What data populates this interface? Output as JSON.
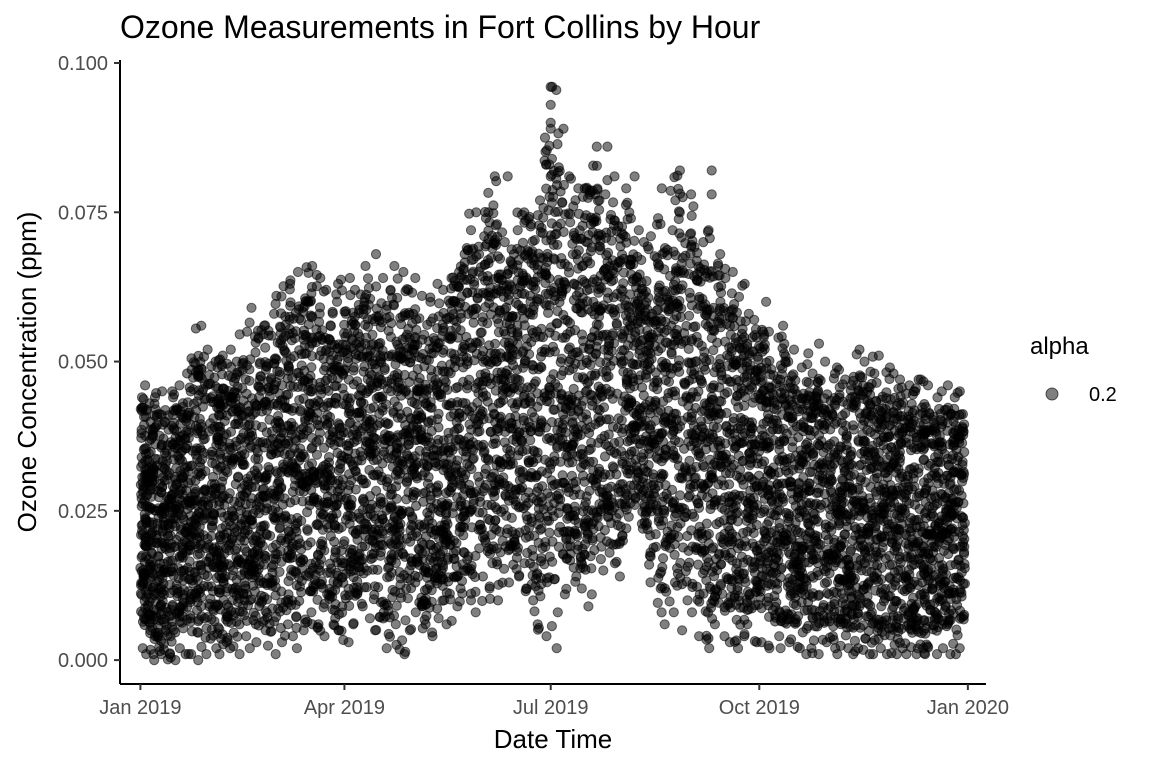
{
  "chart_data": {
    "type": "scatter",
    "title": "Ozone Measurements in Fort Collins by Hour",
    "xlabel": "Date Time",
    "ylabel": "Ozone Concentration (ppm)",
    "x_range": [
      "2018-12-23",
      "2020-01-09"
    ],
    "ylim": [
      -0.004,
      0.1005
    ],
    "y_ticks": [
      {
        "value": 0.0,
        "label": "0.000"
      },
      {
        "value": 0.025,
        "label": "0.025"
      },
      {
        "value": 0.05,
        "label": "0.050"
      },
      {
        "value": 0.075,
        "label": "0.075"
      },
      {
        "value": 0.1,
        "label": "0.100"
      }
    ],
    "x_ticks": [
      {
        "value": "2019-01-01",
        "label": "Jan 2019"
      },
      {
        "value": "2019-04-01",
        "label": "Apr 2019"
      },
      {
        "value": "2019-07-01",
        "label": "Jul 2019"
      },
      {
        "value": "2019-10-01",
        "label": "Oct 2019"
      },
      {
        "value": "2020-01-01",
        "label": "Jan 2020"
      }
    ],
    "grid": false,
    "legend": {
      "title": "alpha",
      "position": "right",
      "entries": [
        {
          "label": "0.2"
        }
      ]
    },
    "point_color": "#000000",
    "point_alpha": 0.5,
    "series": [
      {
        "x": [
          "2019-01-01",
          "2019-01-03",
          "2019-01-05",
          "2019-01-07",
          "2019-01-10",
          "2019-01-12",
          "2019-01-15",
          "2019-01-18",
          "2019-01-20",
          "2019-01-23",
          "2019-01-26",
          "2019-01-28",
          "2019-02-01",
          "2019-02-04",
          "2019-02-06",
          "2019-02-09",
          "2019-02-12",
          "2019-02-15",
          "2019-02-18",
          "2019-02-21",
          "2019-02-24",
          "2019-02-27",
          "2019-03-02",
          "2019-03-05",
          "2019-03-08",
          "2019-03-11",
          "2019-03-14",
          "2019-03-17",
          "2019-03-20",
          "2019-03-23",
          "2019-03-26",
          "2019-03-29",
          "2019-04-01",
          "2019-04-04",
          "2019-04-07",
          "2019-04-10",
          "2019-04-13",
          "2019-04-16",
          "2019-04-19",
          "2019-04-22",
          "2019-04-25",
          "2019-04-28",
          "2019-05-01",
          "2019-05-04",
          "2019-05-07",
          "2019-05-10",
          "2019-05-13",
          "2019-05-16",
          "2019-05-19",
          "2019-05-22",
          "2019-05-25",
          "2019-05-28",
          "2019-06-01",
          "2019-06-04",
          "2019-06-07",
          "2019-06-10",
          "2019-06-13",
          "2019-06-16",
          "2019-06-19",
          "2019-06-22",
          "2019-06-25",
          "2019-06-28",
          "2019-07-01",
          "2019-07-04",
          "2019-07-07",
          "2019-07-10",
          "2019-07-13",
          "2019-07-16",
          "2019-07-19",
          "2019-07-22",
          "2019-07-25",
          "2019-07-28",
          "2019-08-01",
          "2019-08-04",
          "2019-08-07",
          "2019-08-10",
          "2019-08-13",
          "2019-08-16",
          "2019-08-19",
          "2019-08-22",
          "2019-08-25",
          "2019-08-28",
          "2019-09-01",
          "2019-09-04",
          "2019-09-07",
          "2019-09-10",
          "2019-09-13",
          "2019-09-16",
          "2019-09-19",
          "2019-09-22",
          "2019-09-25",
          "2019-09-28",
          "2019-10-01",
          "2019-10-04",
          "2019-10-07",
          "2019-10-10",
          "2019-10-13",
          "2019-10-16",
          "2019-10-19",
          "2019-10-22",
          "2019-10-25",
          "2019-10-28",
          "2019-11-01",
          "2019-11-04",
          "2019-11-07",
          "2019-11-10",
          "2019-11-13",
          "2019-11-16",
          "2019-11-19",
          "2019-11-22",
          "2019-11-25",
          "2019-11-28",
          "2019-12-01",
          "2019-12-04",
          "2019-12-07",
          "2019-12-10",
          "2019-12-13",
          "2019-12-16",
          "2019-12-19",
          "2019-12-22",
          "2019-12-25",
          "2019-12-28",
          "2019-12-31"
        ],
        "low": [
          0.002,
          0.001,
          0.001,
          0.0,
          0.001,
          0.001,
          0.0,
          0.002,
          0.001,
          0.001,
          0.0,
          0.001,
          0.002,
          0.001,
          0.003,
          0.002,
          0.001,
          0.004,
          0.002,
          0.003,
          0.005,
          0.001,
          0.003,
          0.006,
          0.004,
          0.002,
          0.005,
          0.008,
          0.006,
          0.004,
          0.007,
          0.005,
          0.003,
          0.006,
          0.009,
          0.007,
          0.005,
          0.008,
          0.002,
          0.006,
          0.001,
          0.005,
          0.008,
          0.006,
          0.004,
          0.007,
          0.01,
          0.006,
          0.009,
          0.012,
          0.01,
          0.008,
          0.014,
          0.012,
          0.01,
          0.013,
          0.016,
          0.014,
          0.012,
          0.01,
          0.006,
          0.004,
          0.002,
          0.008,
          0.011,
          0.014,
          0.012,
          0.009,
          0.011,
          0.015,
          0.018,
          0.014,
          0.02,
          0.024,
          0.026,
          0.022,
          0.016,
          0.012,
          0.006,
          0.008,
          0.005,
          0.01,
          0.008,
          0.004,
          0.002,
          0.006,
          0.004,
          0.003,
          0.002,
          0.004,
          0.006,
          0.003,
          0.003,
          0.002,
          0.004,
          0.002,
          0.003,
          0.002,
          0.001,
          0.002,
          0.001,
          0.003,
          0.002,
          0.001,
          0.002,
          0.001,
          0.002,
          0.001,
          0.001,
          0.002,
          0.001,
          0.001,
          0.002,
          0.001,
          0.001,
          0.002,
          0.001,
          0.001,
          0.002,
          0.001,
          0.001,
          0.002,
          0.001
        ],
        "high": [
          0.044,
          0.046,
          0.043,
          0.042,
          0.045,
          0.041,
          0.044,
          0.046,
          0.048,
          0.045,
          0.056,
          0.052,
          0.05,
          0.049,
          0.051,
          0.052,
          0.05,
          0.055,
          0.059,
          0.054,
          0.056,
          0.058,
          0.061,
          0.057,
          0.063,
          0.065,
          0.06,
          0.066,
          0.064,
          0.062,
          0.06,
          0.063,
          0.064,
          0.062,
          0.06,
          0.066,
          0.068,
          0.064,
          0.062,
          0.066,
          0.065,
          0.062,
          0.064,
          0.061,
          0.06,
          0.063,
          0.062,
          0.064,
          0.065,
          0.068,
          0.072,
          0.075,
          0.074,
          0.081,
          0.073,
          0.07,
          0.068,
          0.072,
          0.075,
          0.073,
          0.077,
          0.083,
          0.096,
          0.089,
          0.081,
          0.076,
          0.079,
          0.074,
          0.086,
          0.077,
          0.078,
          0.081,
          0.079,
          0.075,
          0.072,
          0.07,
          0.071,
          0.074,
          0.069,
          0.072,
          0.082,
          0.078,
          0.076,
          0.07,
          0.072,
          0.066,
          0.068,
          0.064,
          0.065,
          0.063,
          0.058,
          0.057,
          0.06,
          0.055,
          0.054,
          0.056,
          0.05,
          0.052,
          0.049,
          0.048,
          0.053,
          0.05,
          0.048,
          0.049,
          0.047,
          0.046,
          0.052,
          0.05,
          0.048,
          0.051,
          0.049,
          0.048,
          0.047,
          0.046,
          0.045,
          0.047,
          0.046,
          0.044,
          0.045,
          0.046,
          0.044,
          0.045,
          0.044
        ]
      }
    ],
    "outliers": [
      {
        "x": "2019-07-01",
        "y": 0.096
      },
      {
        "x": "2019-07-01",
        "y": 0.093
      },
      {
        "x": "2019-07-01",
        "y": 0.09
      },
      {
        "x": "2019-07-01",
        "y": 0.089
      },
      {
        "x": "2019-07-01",
        "y": 0.081
      },
      {
        "x": "2019-06-29",
        "y": 0.083
      },
      {
        "x": "2019-07-26",
        "y": 0.086
      },
      {
        "x": "2019-06-12",
        "y": 0.081
      },
      {
        "x": "2019-09-10",
        "y": 0.082
      },
      {
        "x": "2019-09-10",
        "y": 0.078
      },
      {
        "x": "2019-08-19",
        "y": 0.079
      },
      {
        "x": "2019-08-25",
        "y": 0.077
      },
      {
        "x": "2019-07-16",
        "y": 0.079
      },
      {
        "x": "2019-08-07",
        "y": 0.081
      }
    ]
  }
}
